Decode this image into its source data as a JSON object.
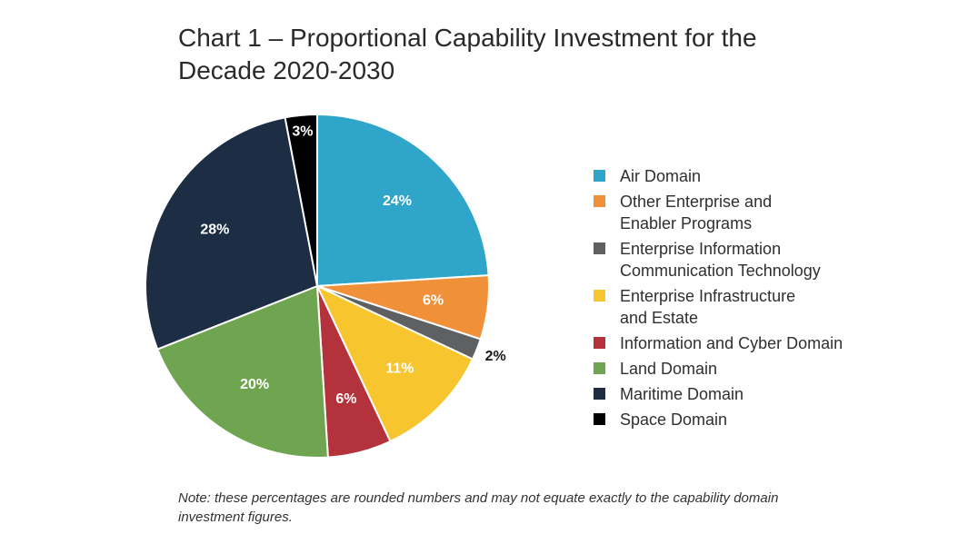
{
  "title": {
    "line1": "Chart 1 – Proportional Capability Investment for the",
    "line2": "Decade 2020-2030"
  },
  "note": "Note:  these percentages are rounded numbers and may not equate exactly to the capability domain investment figures.",
  "chart_data": {
    "type": "pie",
    "title": "Chart 1 – Proportional Capability Investment for the Decade 2020-2030",
    "legend_position": "right",
    "slices": [
      {
        "name": "Air Domain",
        "value": 24,
        "label": "24%",
        "color": "#2fa6c9",
        "label_color": "#ffffff"
      },
      {
        "name": "Other Enterprise and\nEnabler Programs",
        "value": 6,
        "label": "6%",
        "color": "#f0913a",
        "label_color": "#ffffff"
      },
      {
        "name": "Enterprise Information\nCommunication Technology",
        "value": 2,
        "label": "2%",
        "color": "#5f6062",
        "label_color": "#1a1a1a"
      },
      {
        "name": "Enterprise Infrastructure\nand Estate",
        "value": 11,
        "label": "11%",
        "color": "#f7c52e",
        "label_color": "#ffffff"
      },
      {
        "name": "Information and Cyber Domain",
        "value": 6,
        "label": "6%",
        "color": "#b3323b",
        "label_color": "#ffffff"
      },
      {
        "name": "Land Domain",
        "value": 20,
        "label": "20%",
        "color": "#6fa550",
        "label_color": "#ffffff"
      },
      {
        "name": "Maritime Domain",
        "value": 28,
        "label": "28%",
        "color": "#1c2d44",
        "label_color": "#ffffff"
      },
      {
        "name": "Space Domain",
        "value": 3,
        "label": "3%",
        "color": "#000000",
        "label_color": "#ffffff"
      }
    ]
  }
}
